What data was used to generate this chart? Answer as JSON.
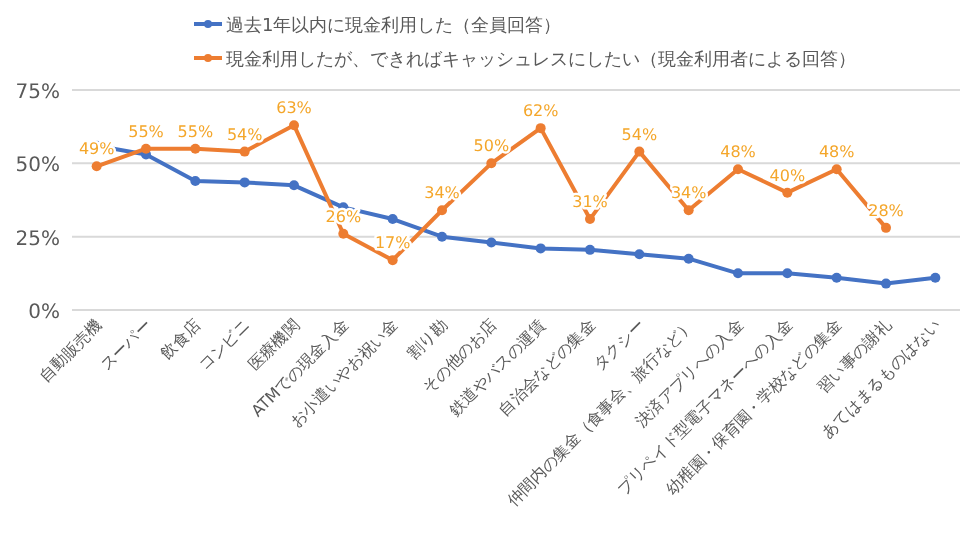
{
  "chart_data": {
    "type": "line",
    "categories": [
      "自動販売機",
      "スーパー",
      "飲食店",
      "コンビニ",
      "医療機関",
      "ATMでの現金入金",
      "お小遣いやお祝い金",
      "割り勘",
      "その他のお店",
      "鉄道やバスの運賃",
      "自治会などの集金",
      "タクシー",
      "仲間内の集金（食事会、旅行など）",
      "決済アプリへの入金",
      "プリペイド型電子マネーへの入金",
      "幼稚園・保育園・学校などの集金",
      "習い事の謝礼",
      "あてはまるものはない"
    ],
    "series": [
      {
        "name": "過去1年以内に現金利用した（全員回答）",
        "color": "#4472c4",
        "values": [
          56,
          53,
          44,
          43.5,
          42.5,
          35,
          31,
          25,
          23,
          21,
          20.5,
          19,
          17.5,
          12.5,
          12.5,
          11,
          9,
          11
        ]
      },
      {
        "name": "現金利用したが、できればキャッシュレスにしたい（現金利用者による回答）",
        "color": "#ed7d31",
        "values": [
          49,
          55,
          55,
          54,
          63,
          26,
          17,
          34,
          50,
          62,
          31,
          54,
          34,
          48,
          40,
          48,
          28,
          null
        ],
        "value_labels": [
          "49%",
          "55%",
          "55%",
          "54%",
          "63%",
          "26%",
          "17%",
          "34%",
          "50%",
          "62%",
          "31%",
          "54%",
          "34%",
          "48%",
          "40%",
          "48%",
          "28%",
          null
        ]
      }
    ],
    "ylim": [
      0,
      75
    ],
    "yticks": [
      {
        "value": 0,
        "label": "0%"
      },
      {
        "value": 25,
        "label": "25%"
      },
      {
        "value": 50,
        "label": "50%"
      },
      {
        "value": 75,
        "label": "75%"
      }
    ],
    "grid": "y",
    "legend": "top",
    "marker": "circle"
  }
}
